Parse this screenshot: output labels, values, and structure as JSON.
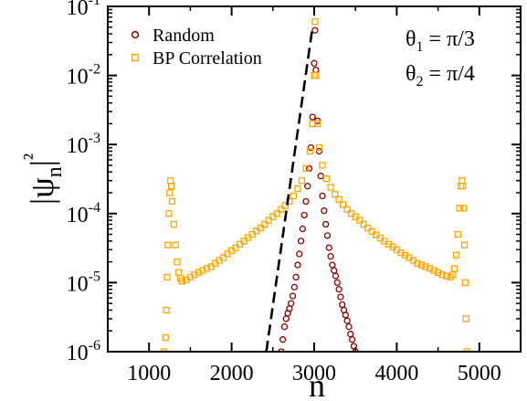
{
  "chart_data": {
    "type": "scatter",
    "xlabel": "n",
    "ylabel": "|ψn|²",
    "xlim": [
      500,
      5500
    ],
    "ylim": [
      1e-06,
      0.1
    ],
    "y_scale": "log",
    "x_ticks": [
      1000,
      2000,
      3000,
      4000,
      5000
    ],
    "x_tick_labels": [
      "1000",
      "2000",
      "3000",
      "4000",
      "5000"
    ],
    "y_ticks": [
      1e-06,
      1e-05,
      0.0001,
      0.001,
      0.01,
      0.1
    ],
    "y_tick_labels": [
      {
        "base": "10",
        "exp": "-6"
      },
      {
        "base": "10",
        "exp": "-5"
      },
      {
        "base": "10",
        "exp": "-4"
      },
      {
        "base": "10",
        "exp": "-3"
      },
      {
        "base": "10",
        "exp": "-2"
      },
      {
        "base": "10",
        "exp": "-1"
      }
    ],
    "legend_position": "top-left",
    "annotations": [
      {
        "base": "θ",
        "sub": "1",
        "rest": " = π/3"
      },
      {
        "base": "θ",
        "sub": "2",
        "rest": " = π/4"
      }
    ],
    "series": [
      {
        "name": "Random",
        "marker": "circle",
        "color": "#8b0000",
        "points": [
          [
            2600,
            1e-06
          ],
          [
            2620,
            1.5e-06
          ],
          [
            2640,
            2.3e-06
          ],
          [
            2660,
            3e-06
          ],
          [
            2680,
            3.6e-06
          ],
          [
            2700,
            4.2e-06
          ],
          [
            2720,
            5e-06
          ],
          [
            2740,
            6.4e-06
          ],
          [
            2760,
            8.6e-06
          ],
          [
            2780,
            1.2e-05
          ],
          [
            2800,
            1.8e-05
          ],
          [
            2820,
            2.6e-05
          ],
          [
            2840,
            4e-05
          ],
          [
            2860,
            6e-05
          ],
          [
            2880,
            9.5e-05
          ],
          [
            2900,
            0.00015
          ],
          [
            2920,
            0.00025
          ],
          [
            2940,
            0.00045
          ],
          [
            2960,
            0.0009
          ],
          [
            2980,
            0.0025
          ],
          [
            3000,
            0.015
          ],
          [
            3010,
            0.045
          ],
          [
            3020,
            0.012
          ],
          [
            3040,
            0.0022
          ],
          [
            3060,
            0.0008
          ],
          [
            3080,
            0.00035
          ],
          [
            3100,
            0.00018
          ],
          [
            3120,
            0.00011
          ],
          [
            3140,
            7e-05
          ],
          [
            3160,
            4.8e-05
          ],
          [
            3180,
            3.2e-05
          ],
          [
            3200,
            2.4e-05
          ],
          [
            3220,
            1.8e-05
          ],
          [
            3240,
            1.5e-05
          ],
          [
            3260,
            1.25e-05
          ],
          [
            3280,
            1e-05
          ],
          [
            3300,
            8e-06
          ],
          [
            3320,
            6.2e-06
          ],
          [
            3340,
            4.8e-06
          ],
          [
            3360,
            4e-06
          ],
          [
            3380,
            3.4e-06
          ],
          [
            3400,
            2.8e-06
          ],
          [
            3420,
            2.3e-06
          ],
          [
            3440,
            1.8e-06
          ],
          [
            3460,
            1.5e-06
          ],
          [
            3480,
            1.2e-06
          ],
          [
            3500,
            1e-06
          ]
        ]
      },
      {
        "name": "BP Correlation",
        "marker": "square",
        "color": "#ffa500",
        "points": [
          [
            1180,
            1e-06
          ],
          [
            1200,
            1.6e-06
          ],
          [
            1210,
            4e-06
          ],
          [
            1220,
            1.2e-05
          ],
          [
            1230,
            3.5e-05
          ],
          [
            1240,
            0.0001
          ],
          [
            1250,
            0.0002
          ],
          [
            1260,
            0.0003
          ],
          [
            1270,
            0.00025
          ],
          [
            1280,
            0.00015
          ],
          [
            1300,
            7e-05
          ],
          [
            1320,
            3.5e-05
          ],
          [
            1340,
            2e-05
          ],
          [
            1360,
            1.4e-05
          ],
          [
            1380,
            1.15e-05
          ],
          [
            1400,
            1.05e-05
          ],
          [
            1450,
            1.1e-05
          ],
          [
            1500,
            1.2e-05
          ],
          [
            1550,
            1.3e-05
          ],
          [
            1600,
            1.4e-05
          ],
          [
            1650,
            1.5e-05
          ],
          [
            1700,
            1.6e-05
          ],
          [
            1750,
            1.7e-05
          ],
          [
            1800,
            1.9e-05
          ],
          [
            1850,
            2.1e-05
          ],
          [
            1900,
            2.3e-05
          ],
          [
            1950,
            2.6e-05
          ],
          [
            2000,
            2.9e-05
          ],
          [
            2050,
            3.2e-05
          ],
          [
            2100,
            3.6e-05
          ],
          [
            2150,
            4e-05
          ],
          [
            2200,
            4.5e-05
          ],
          [
            2250,
            5e-05
          ],
          [
            2300,
            5.6e-05
          ],
          [
            2350,
            6.2e-05
          ],
          [
            2400,
            7e-05
          ],
          [
            2450,
            8e-05
          ],
          [
            2500,
            9e-05
          ],
          [
            2550,
            0.0001
          ],
          [
            2600,
            0.000115
          ],
          [
            2650,
            0.00013
          ],
          [
            2700,
            0.00015
          ],
          [
            2750,
            0.00018
          ],
          [
            2800,
            0.00023
          ],
          [
            2850,
            0.0003
          ],
          [
            2900,
            0.00045
          ],
          [
            2950,
            0.0008
          ],
          [
            2980,
            0.002
          ],
          [
            3000,
            0.01
          ],
          [
            3010,
            0.06
          ],
          [
            3020,
            0.01
          ],
          [
            3040,
            0.002
          ],
          [
            3060,
            0.0009
          ],
          [
            3100,
            0.0005
          ],
          [
            3150,
            0.00032
          ],
          [
            3200,
            0.00024
          ],
          [
            3250,
            0.00019
          ],
          [
            3300,
            0.00016
          ],
          [
            3350,
            0.000135
          ],
          [
            3400,
            0.000115
          ],
          [
            3450,
            0.0001
          ],
          [
            3500,
            9e-05
          ],
          [
            3550,
            8e-05
          ],
          [
            3600,
            7e-05
          ],
          [
            3650,
            6.2e-05
          ],
          [
            3700,
            5.5e-05
          ],
          [
            3750,
            4.9e-05
          ],
          [
            3800,
            4.4e-05
          ],
          [
            3850,
            4e-05
          ],
          [
            3900,
            3.6e-05
          ],
          [
            3950,
            3.3e-05
          ],
          [
            4000,
            3e-05
          ],
          [
            4050,
            2.7e-05
          ],
          [
            4100,
            2.5e-05
          ],
          [
            4150,
            2.3e-05
          ],
          [
            4200,
            2.1e-05
          ],
          [
            4250,
            1.9e-05
          ],
          [
            4300,
            1.8e-05
          ],
          [
            4350,
            1.7e-05
          ],
          [
            4400,
            1.6e-05
          ],
          [
            4450,
            1.5e-05
          ],
          [
            4500,
            1.4e-05
          ],
          [
            4550,
            1.3e-05
          ],
          [
            4600,
            1.25e-05
          ],
          [
            4650,
            1.2e-05
          ],
          [
            4680,
            1.3e-05
          ],
          [
            4700,
            1.6e-05
          ],
          [
            4720,
            2.5e-05
          ],
          [
            4740,
            5e-05
          ],
          [
            4760,
            0.00012
          ],
          [
            4775,
            0.00025
          ],
          [
            4790,
            0.0003
          ],
          [
            4800,
            0.00025
          ],
          [
            4810,
            0.00012
          ],
          [
            4820,
            3.5e-05
          ],
          [
            4830,
            1e-05
          ],
          [
            4840,
            3e-06
          ],
          [
            4850,
            1e-06
          ]
        ]
      },
      {
        "name": "",
        "marker": "dashed-line",
        "color": "#000000",
        "points": [
          [
            2420,
            1e-06
          ],
          [
            2980,
            0.05
          ]
        ]
      }
    ]
  }
}
